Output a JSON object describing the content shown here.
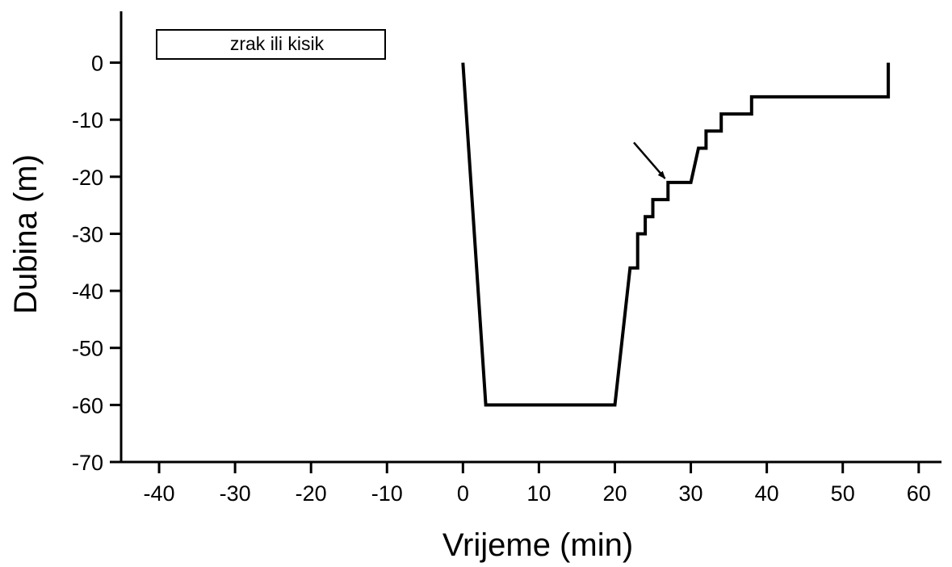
{
  "chart_data": {
    "type": "line",
    "title": "",
    "xlabel": "Vrijeme (min)",
    "ylabel": "Dubina (m)",
    "xlim": [
      -45,
      63
    ],
    "ylim": [
      -70,
      9
    ],
    "x_ticks": [
      -40,
      -30,
      -20,
      -10,
      0,
      10,
      20,
      30,
      40,
      50,
      60
    ],
    "y_ticks": [
      0,
      -10,
      -20,
      -30,
      -40,
      -50,
      -60,
      -70
    ],
    "grid": false,
    "legend": {
      "position": "top-left",
      "entries": [
        "zrak ili kisik"
      ]
    },
    "series": [
      {
        "points": [
          [
            0,
            0
          ],
          [
            3,
            -60
          ],
          [
            20,
            -60
          ],
          [
            22,
            -36
          ],
          [
            23,
            -36
          ],
          [
            23,
            -30
          ],
          [
            24,
            -30
          ],
          [
            24,
            -27
          ],
          [
            25,
            -27
          ],
          [
            25,
            -24
          ],
          [
            27,
            -24
          ],
          [
            27,
            -21
          ],
          [
            30,
            -21
          ],
          [
            31,
            -15
          ],
          [
            32,
            -15
          ],
          [
            32,
            -12
          ],
          [
            34,
            -12
          ],
          [
            34,
            -9
          ],
          [
            38,
            -9
          ],
          [
            38,
            -6
          ],
          [
            56,
            -6
          ],
          [
            56,
            0
          ]
        ]
      }
    ],
    "annotations": [
      {
        "type": "arrow",
        "from": [
          22.5,
          -14
        ],
        "to": [
          26.6,
          -20.3
        ]
      }
    ]
  }
}
